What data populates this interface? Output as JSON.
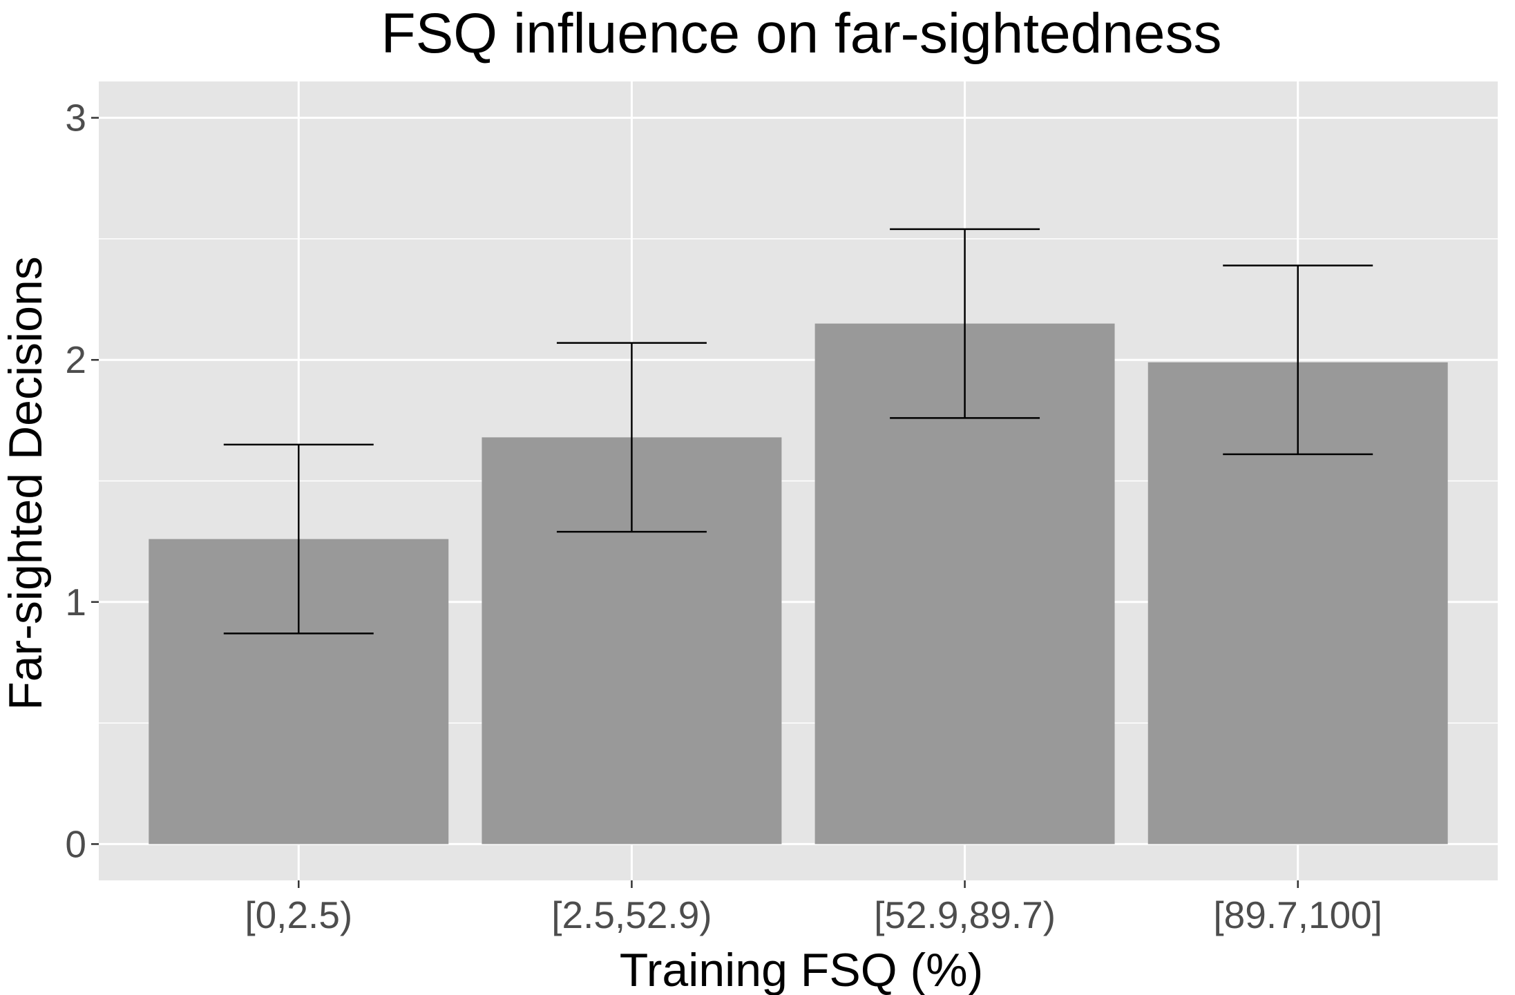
{
  "chart_data": {
    "type": "bar",
    "title": "FSQ influence on far-sightedness",
    "xlabel": "Training FSQ (%)",
    "ylabel": "Far-sighted Decisions",
    "categories": [
      "[0,2.5)",
      "[2.5,52.9)",
      "[52.9,89.7)",
      "[89.7,100]"
    ],
    "values": [
      1.26,
      1.68,
      2.15,
      1.99
    ],
    "error_low": [
      0.87,
      1.29,
      1.76,
      1.61
    ],
    "error_high": [
      1.65,
      2.07,
      2.54,
      2.39
    ],
    "ylim": [
      -0.15,
      3.15
    ],
    "yticks": [
      0,
      1,
      2,
      3
    ],
    "ytick_labels": [
      "0",
      "1",
      "2",
      "3"
    ],
    "grid": true,
    "legend": "none",
    "colors": {
      "panel": "#e5e5e5",
      "grid": "#ffffff",
      "bar": "#999999",
      "errorbar": "#000000",
      "tick_text": "#4d4d4d",
      "ticks": "#333333"
    }
  }
}
